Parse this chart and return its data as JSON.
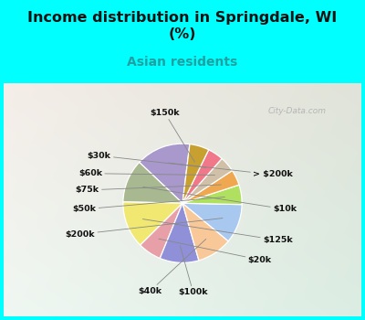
{
  "title": "Income distribution in Springdale, WI\n(%)",
  "subtitle": "Asian residents",
  "bg_color": "#00FFFF",
  "panel_color_tl": "#e8f5f0",
  "panel_color_br": "#c8e8d8",
  "labels": [
    "> $200k",
    "$10k",
    "$125k",
    "$20k",
    "$100k",
    "$40k",
    "$200k",
    "$50k",
    "$75k",
    "$60k",
    "$30k",
    "$150k"
  ],
  "values": [
    14,
    11,
    12,
    6,
    10,
    9,
    10,
    5,
    4,
    4,
    4,
    5
  ],
  "colors": [
    "#a898cc",
    "#a8b890",
    "#f0e870",
    "#e8a0a8",
    "#9090d8",
    "#f8c898",
    "#a8c8f0",
    "#b0e060",
    "#f0a850",
    "#d0c0a8",
    "#f07888",
    "#c8a030"
  ],
  "startangle": 83,
  "watermark": "City-Data.com",
  "subtitle_color": "#20a0a0"
}
